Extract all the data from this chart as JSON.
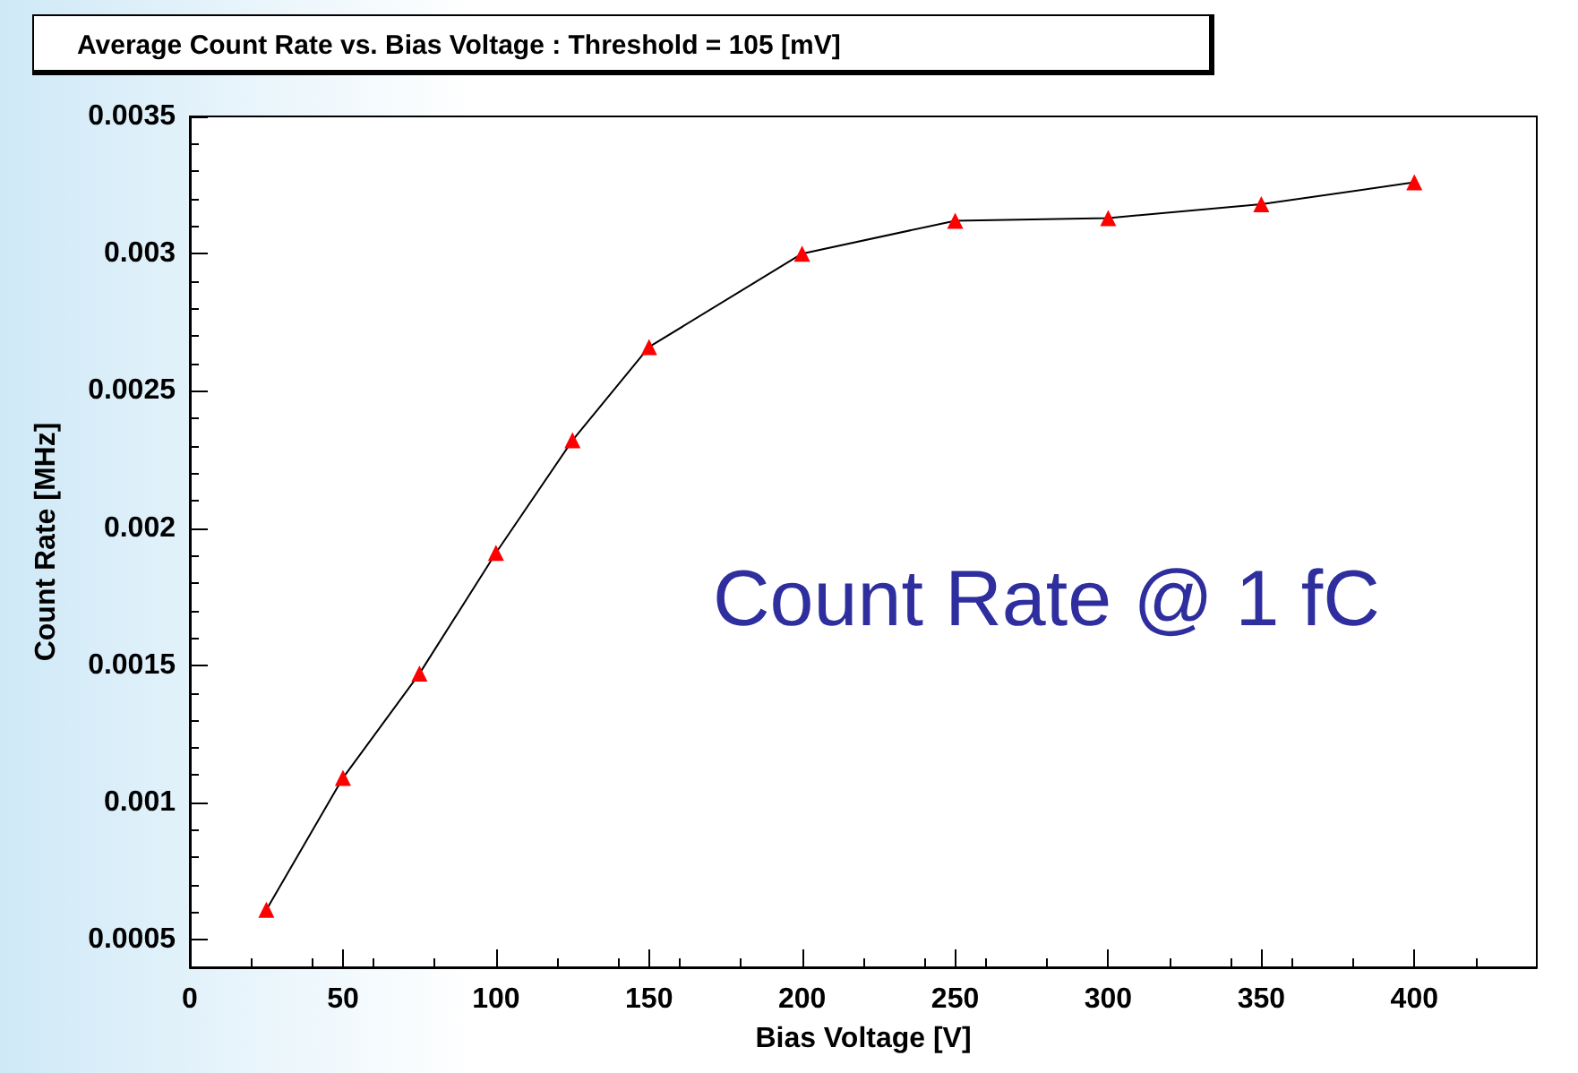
{
  "chart_data": {
    "type": "line",
    "title": "Average Count Rate vs. Bias Voltage : Threshold = 105 [mV]",
    "xlabel": "Bias Voltage [V]",
    "ylabel": "Count Rate [MHz]",
    "annotations": [
      "Count Rate @ 1 fC"
    ],
    "x": [
      25,
      50,
      75,
      100,
      125,
      150,
      200,
      250,
      300,
      350,
      400
    ],
    "series": [
      {
        "color": "#000000",
        "values": [
          0.00061,
          0.00109,
          0.00147,
          0.00191,
          0.00232,
          0.00266,
          0.003,
          0.00312,
          0.00313,
          0.00318,
          0.00326
        ]
      }
    ],
    "xlim": [
      0,
      440
    ],
    "xticks": [
      0,
      50,
      100,
      150,
      200,
      250,
      300,
      350,
      400
    ],
    "ylim": [
      0.0004,
      0.0035
    ],
    "yticks": [
      0.0005,
      0.001,
      0.0015,
      0.002,
      0.0025,
      0.003,
      0.0035
    ],
    "marker": "triangle",
    "grid": false
  }
}
